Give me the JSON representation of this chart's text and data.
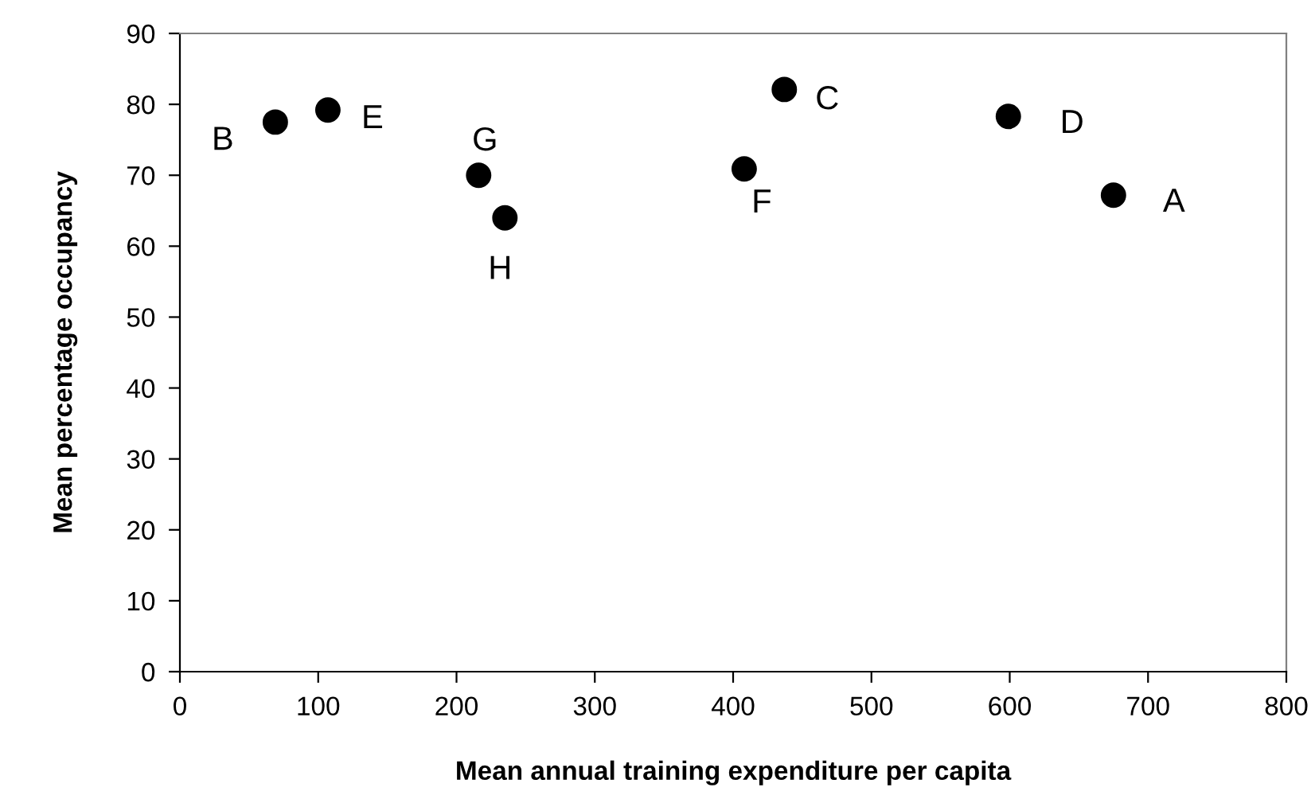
{
  "chart_data": {
    "type": "scatter",
    "xlabel": "Mean annual training expenditure per capita",
    "ylabel": "Mean percentage occupancy",
    "x": [
      69,
      107,
      216,
      235,
      437,
      408,
      599,
      675
    ],
    "values": [
      77.5,
      79.2,
      70,
      64,
      82.1,
      70.9,
      78.3,
      67.2
    ],
    "color": "#000000",
    "marker": "circle",
    "xlim": [
      0,
      800
    ],
    "xticks": [
      0,
      100,
      200,
      300,
      400,
      500,
      600,
      700,
      800
    ],
    "ylim": [
      0,
      90
    ],
    "yticks": [
      0,
      10,
      20,
      30,
      40,
      50,
      60,
      70,
      80,
      90
    ],
    "grid": false,
    "legend": false,
    "annotations": [
      {
        "text": "B",
        "x": 69,
        "y": 77.5
      },
      {
        "text": "E",
        "x": 107,
        "y": 79.2
      },
      {
        "text": "G",
        "x": 216,
        "y": 70
      },
      {
        "text": "H",
        "x": 235,
        "y": 64
      },
      {
        "text": "C",
        "x": 437,
        "y": 82.1
      },
      {
        "text": "F",
        "x": 408,
        "y": 70.9
      },
      {
        "text": "D",
        "x": 599,
        "y": 78.3
      },
      {
        "text": "A",
        "x": 675,
        "y": 67.2
      }
    ]
  }
}
